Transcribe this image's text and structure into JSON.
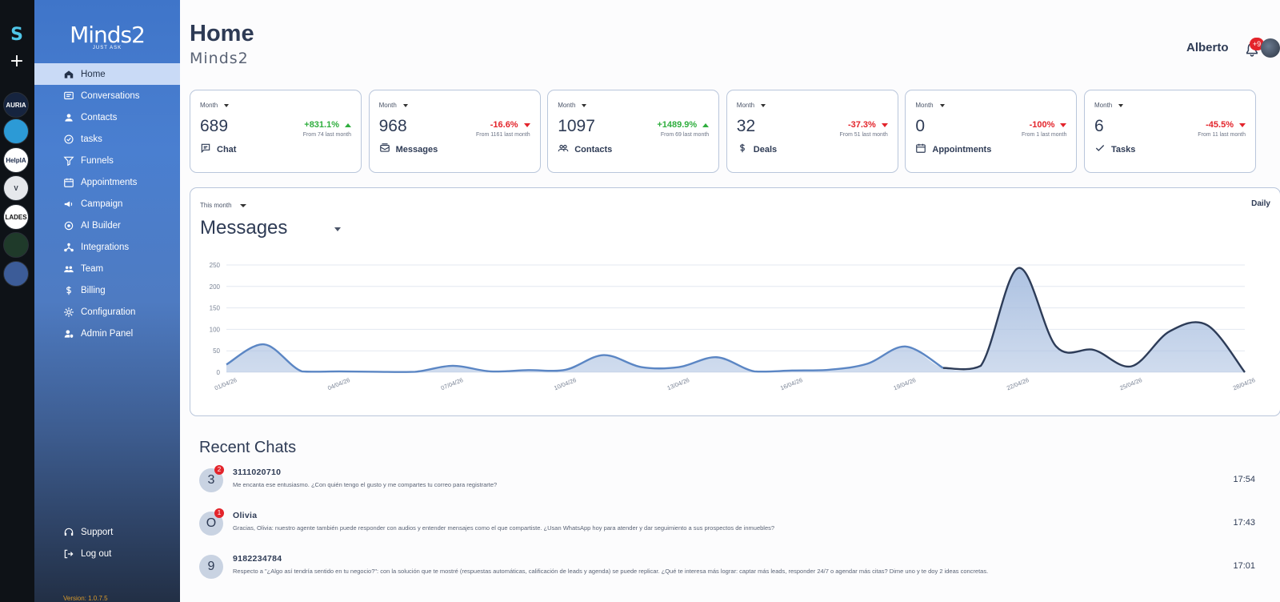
{
  "rail": {
    "logo": "S",
    "add": "+",
    "workspaces": [
      {
        "label": "AURIA",
        "bg": "#16243f",
        "fg": "#ffffff"
      },
      {
        "label": "",
        "bg": "#2c9ad6",
        "fg": "#ffffff"
      },
      {
        "label": "HelpIA",
        "bg": "#ffffff",
        "fg": "#1b2a4a"
      },
      {
        "label": "V",
        "bg": "#e6e8ec",
        "fg": "#2c3340"
      },
      {
        "label": "LADES",
        "bg": "#ffffff",
        "fg": "#111111"
      },
      {
        "label": "",
        "bg": "#1f3a2a",
        "fg": "#ffffff"
      },
      {
        "label": "",
        "bg": "#3c5c98",
        "fg": "#ffffff"
      }
    ]
  },
  "brand": {
    "name": "Minds2",
    "tagline": "JUST ASK"
  },
  "nav": {
    "items": [
      {
        "label": "Home",
        "icon": "home-icon",
        "active": true
      },
      {
        "label": "Conversations",
        "icon": "conversations-icon"
      },
      {
        "label": "Contacts",
        "icon": "person-icon"
      },
      {
        "label": "tasks",
        "icon": "check-circle-icon"
      },
      {
        "label": "Funnels",
        "icon": "funnel-icon"
      },
      {
        "label": "Appointments",
        "icon": "calendar-icon"
      },
      {
        "label": "Campaign",
        "icon": "megaphone-icon"
      },
      {
        "label": "AI Builder",
        "icon": "ai-icon"
      },
      {
        "label": "Integrations",
        "icon": "integrations-icon"
      },
      {
        "label": "Team",
        "icon": "team-icon"
      },
      {
        "label": "Billing",
        "icon": "dollar-icon"
      },
      {
        "label": "Configuration",
        "icon": "gear-icon"
      },
      {
        "label": "Admin Panel",
        "icon": "admin-icon"
      }
    ],
    "bottom": [
      {
        "label": "Support",
        "icon": "support-icon"
      },
      {
        "label": "Log out",
        "icon": "logout-icon"
      }
    ],
    "version": "Version: 1.0.7.5"
  },
  "header": {
    "title": "Home",
    "subtitle": "Minds2",
    "user": "Alberto",
    "notifications": "+9"
  },
  "cards": [
    {
      "period": "Month",
      "value": "689",
      "delta": "+831.1%",
      "trend": "up",
      "from": "From 74 last month",
      "label": "Chat",
      "icon": "chat-icon"
    },
    {
      "period": "Month",
      "value": "968",
      "delta": "-16.6%",
      "trend": "down",
      "from": "From 1161 last month",
      "label": "Messages",
      "icon": "messages-icon"
    },
    {
      "period": "Month",
      "value": "1097",
      "delta": "+1489.9%",
      "trend": "up",
      "from": "From 69 last month",
      "label": "Contacts",
      "icon": "contacts-icon"
    },
    {
      "period": "Month",
      "value": "32",
      "delta": "-37.3%",
      "trend": "down",
      "from": "From 51 last month",
      "label": "Deals",
      "icon": "dollar-icon"
    },
    {
      "period": "Month",
      "value": "0",
      "delta": "-100%",
      "trend": "down",
      "from": "From 1 last month",
      "label": "Appointments",
      "icon": "calendar-icon"
    },
    {
      "period": "Month",
      "value": "6",
      "delta": "-45.5%",
      "trend": "down",
      "from": "From 11 last month",
      "label": "Tasks",
      "icon": "check-icon"
    }
  ],
  "chart_panel": {
    "range": "This month",
    "metric": "Messages",
    "granularity": "Daily"
  },
  "chart_data": {
    "type": "area",
    "x": [
      "01/04/26",
      "02/04/26",
      "03/04/26",
      "04/04/26",
      "05/04/26",
      "06/04/26",
      "07/04/26",
      "08/04/26",
      "09/04/26",
      "10/04/26",
      "11/04/26",
      "12/04/26",
      "13/04/26",
      "14/04/26",
      "15/04/26",
      "16/04/26",
      "17/04/26",
      "18/04/26",
      "19/04/26",
      "20/04/26",
      "21/04/26",
      "22/04/26",
      "23/04/26",
      "24/04/26",
      "25/04/26",
      "26/04/26",
      "27/04/26",
      "28/04/26"
    ],
    "xticks": [
      "01/04/26",
      "04/04/26",
      "07/04/26",
      "10/04/26",
      "13/04/26",
      "16/04/26",
      "19/04/26",
      "22/04/26",
      "25/04/26",
      "28/04/26"
    ],
    "series": [
      {
        "values": [
          18,
          65,
          2,
          2,
          1,
          1,
          15,
          2,
          5,
          6,
          40,
          12,
          12,
          35,
          2,
          4,
          6,
          20,
          60,
          10,
          15,
          243,
          60,
          52,
          14,
          95,
          110,
          0
        ]
      }
    ],
    "ylim": [
      0,
      250
    ],
    "yticks": [
      0,
      50,
      100,
      150,
      200,
      250
    ],
    "grid": true,
    "split_index": 19,
    "colors": {
      "first": "#5b86c4",
      "second": "#2d3c58",
      "fill": "#a9bfe0"
    }
  },
  "recent": {
    "title": "Recent Chats",
    "chats": [
      {
        "avatar": "3",
        "badge": "2",
        "name": "3111020710",
        "message": "Me encanta ese entusiasmo. ¿Con quién tengo el gusto y me compartes tu correo para registrarte?",
        "time": "17:54"
      },
      {
        "avatar": "O",
        "badge": "1",
        "name": "Olivia",
        "message": "Gracias, Olivia: nuestro agente también puede responder con audios y entender mensajes como el que compartiste. ¿Usan WhatsApp hoy para atender y dar seguimiento a sus prospectos de inmuebles?",
        "time": "17:43"
      },
      {
        "avatar": "9",
        "badge": "",
        "name": "9182234784",
        "message": "Respecto a \"¿Algo así tendría sentido en tu negocio?\": con la solución que te mostré (respuestas automáticas, calificación de leads y agenda) se puede replicar. ¿Qué te interesa más lograr: captar más leads, responder 24/7 o agendar más citas? Dime uno y te doy 2 ideas concretas.",
        "time": "17:01"
      }
    ]
  }
}
